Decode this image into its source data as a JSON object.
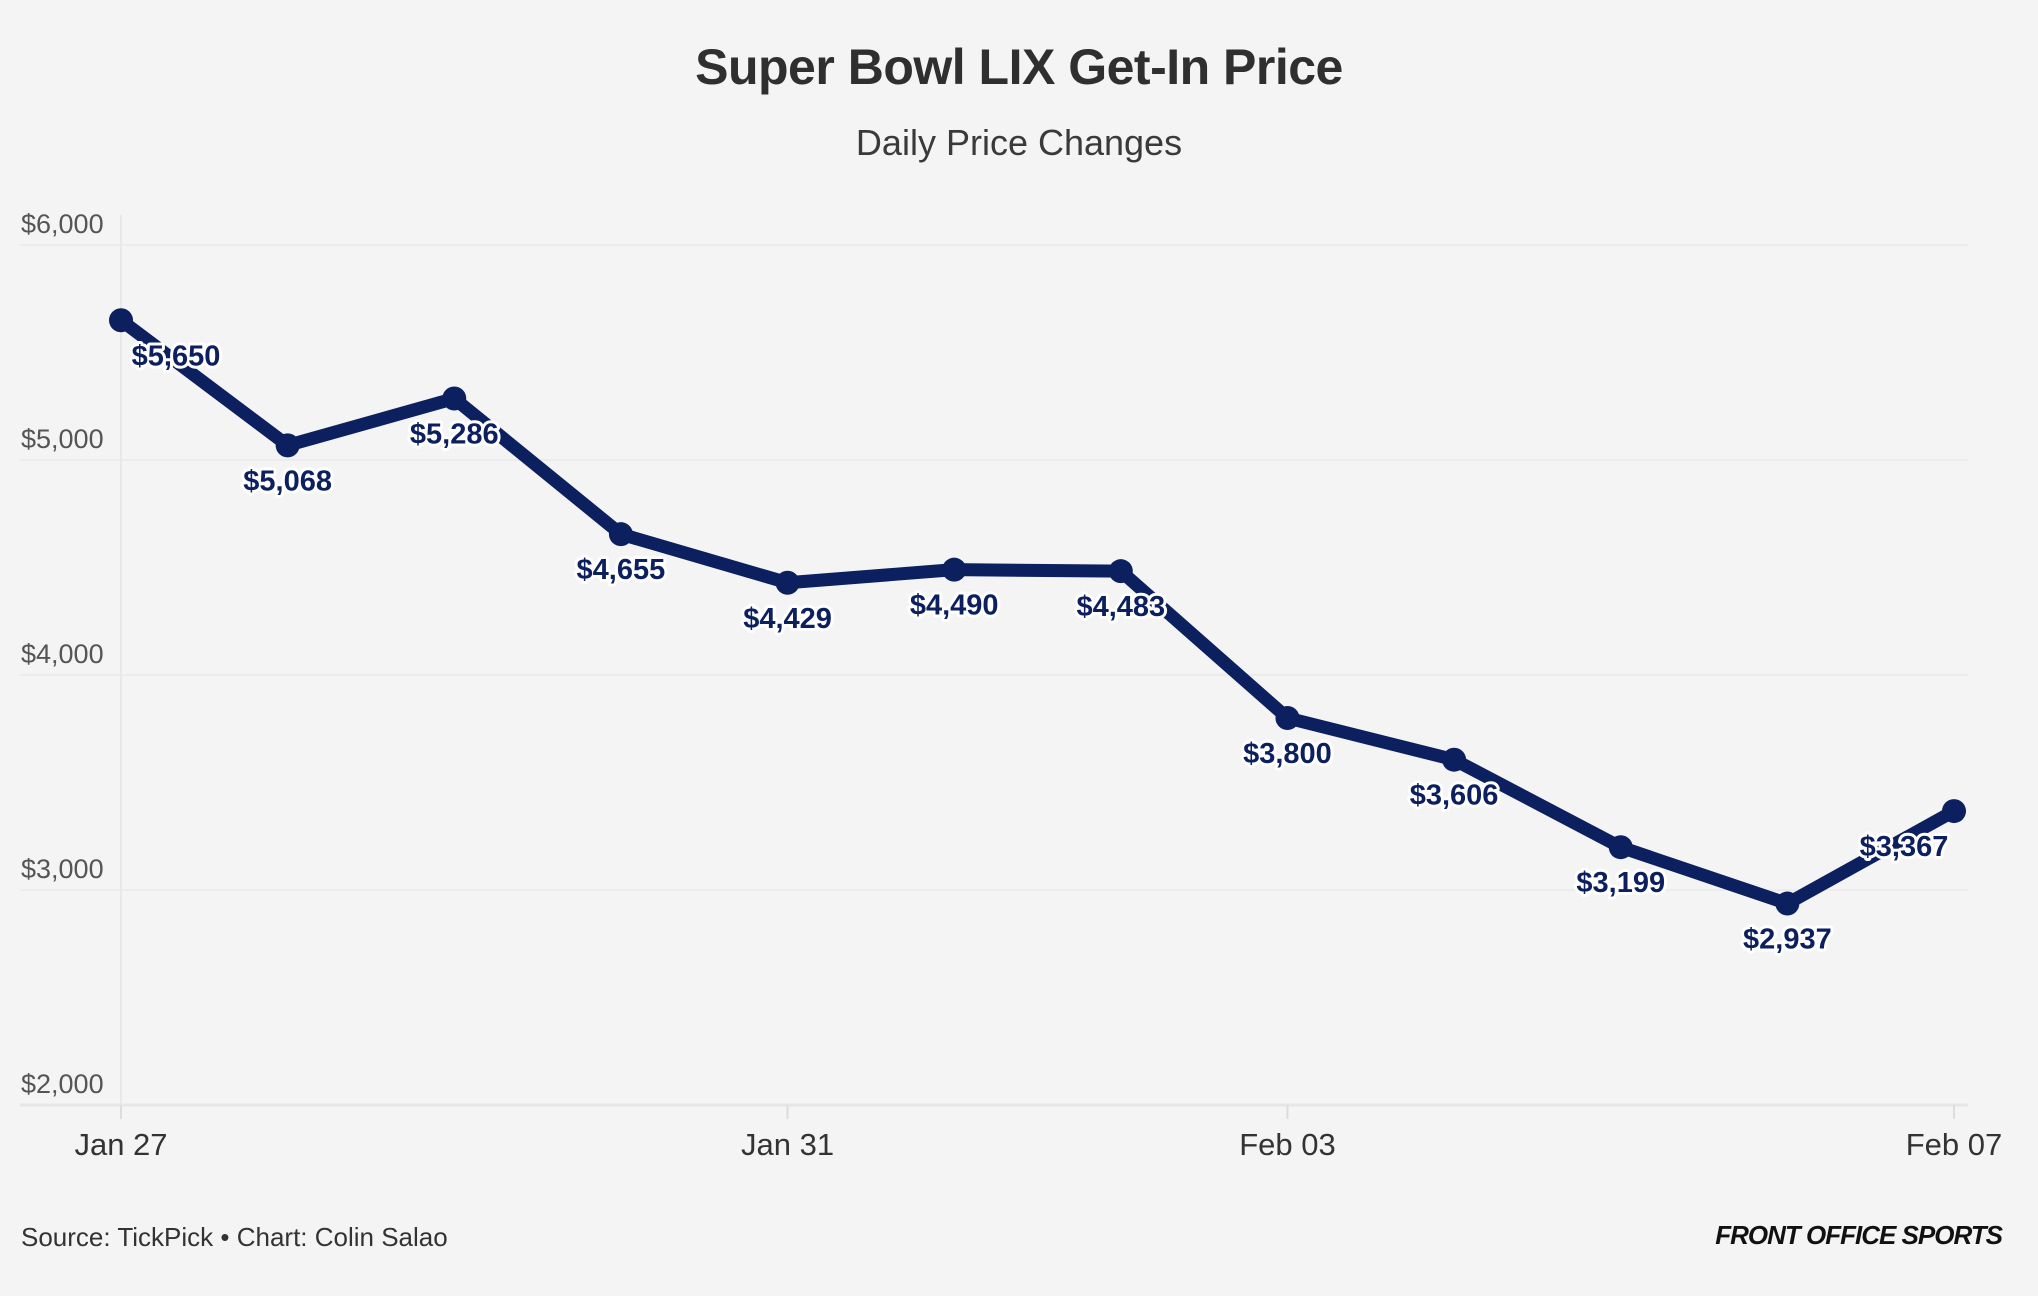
{
  "chart_data": {
    "type": "line",
    "title": "Super Bowl LIX Get-In Price",
    "subtitle": "Daily Price Changes",
    "x": [
      "Jan 27",
      "Jan 28",
      "Jan 29",
      "Jan 30",
      "Jan 31",
      "Feb 01",
      "Feb 02",
      "Feb 03",
      "Feb 04",
      "Feb 05",
      "Feb 06",
      "Feb 07"
    ],
    "values": [
      5650,
      5068,
      5286,
      4655,
      4429,
      4490,
      4483,
      3800,
      3606,
      3199,
      2937,
      3367
    ],
    "data_labels": [
      "$5,650",
      "$5,068",
      "$5,286",
      "$4,655",
      "$4,429",
      "$4,490",
      "$4,483",
      "$3,800",
      "$3,606",
      "$3,199",
      "$2,937",
      "$3,367"
    ],
    "x_ticks": [
      "Jan 27",
      "Jan 31",
      "Feb 03",
      "Feb 07"
    ],
    "y_ticks": [
      6000,
      5000,
      4000,
      3000,
      2000
    ],
    "y_tick_labels": [
      "$6,000",
      "$5,000",
      "$4,000",
      "$3,000",
      "$2,000"
    ],
    "ylim": [
      2000,
      6000
    ],
    "xlabel": "",
    "ylabel": "",
    "grid": true,
    "legend": "none",
    "line_color": "#0c1f5e"
  },
  "footer": {
    "source": "Source: TickPick • Chart: Colin Salao",
    "logo": "FRONT OFFICE SPORTS"
  }
}
